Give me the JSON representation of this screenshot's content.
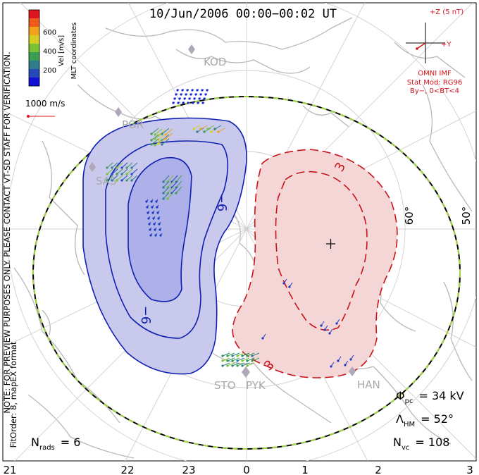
{
  "header": {
    "title": "10/Jun/2006 00:00−00:02 UT"
  },
  "colorbar": {
    "label": "Vel [m/s]",
    "ticks": [
      "600",
      "400",
      "200"
    ],
    "colors": [
      "#e0141c",
      "#ee5b1c",
      "#f2a21b",
      "#d6cf22",
      "#79c232",
      "#3c9e52",
      "#2f7d8c",
      "#2448b6",
      "#1010d6"
    ]
  },
  "coords_label": "MLT coordinates",
  "scale_vector": {
    "label": "1000 m/s",
    "color": "#e0141c"
  },
  "side_note": {
    "line1": "NOTE: FOR PREVIEW PURPOSES ONLY. PLEASE CONTACT VT-SD STAFF FOR VERIFICATION.",
    "line2": "FitOrder: 8, mapEX format"
  },
  "imf": {
    "scale_label": "+Z (5 nT)",
    "y_label": "+Y",
    "source": "OMNI IMF",
    "model": "Stat Mod: RG96",
    "condition": "By−, 0<BT<4",
    "color": "#d3141c"
  },
  "latitude_labels": [
    "60°",
    "50°"
  ],
  "mlt_labels": [
    "21",
    "22",
    "23",
    "0",
    "1",
    "2",
    "3"
  ],
  "stations": [
    {
      "name": "KOD"
    },
    {
      "name": "PGR"
    },
    {
      "name": "SAS"
    },
    {
      "name": "STO"
    },
    {
      "name": "PYK"
    },
    {
      "name": "HAN"
    }
  ],
  "contours": {
    "negative_label": "−6",
    "positive_label": "3",
    "negative_color": "#1020b0",
    "positive_color": "#c81418",
    "negative_fill": "#c9c9ee",
    "positive_fill": "#f4d6d6"
  },
  "stats": {
    "phi_label": "Φ",
    "phi_sub": "pc",
    "phi_value": "= 34 kV",
    "lambda_label": "Λ",
    "lambda_sub": "HM",
    "lambda_value": "= 52°",
    "nvc_label": "N",
    "nvc_sub": "vc",
    "nvc_value": "= 108",
    "nrads_label": "N",
    "nrads_sub": "rads",
    "nrads_value": "= 6"
  },
  "boundary_colors": {
    "dash1": "#000000",
    "dash2": "#9fd640"
  },
  "vector_groups": [
    {
      "name": "KOD cluster",
      "color": "#1a2ad0"
    },
    {
      "name": "PGR cluster",
      "color": "#4a9e4a"
    },
    {
      "name": "dawn cluster",
      "color": "#1c3cc0"
    },
    {
      "name": "STO cluster",
      "color": "#2e8a6a"
    }
  ]
}
